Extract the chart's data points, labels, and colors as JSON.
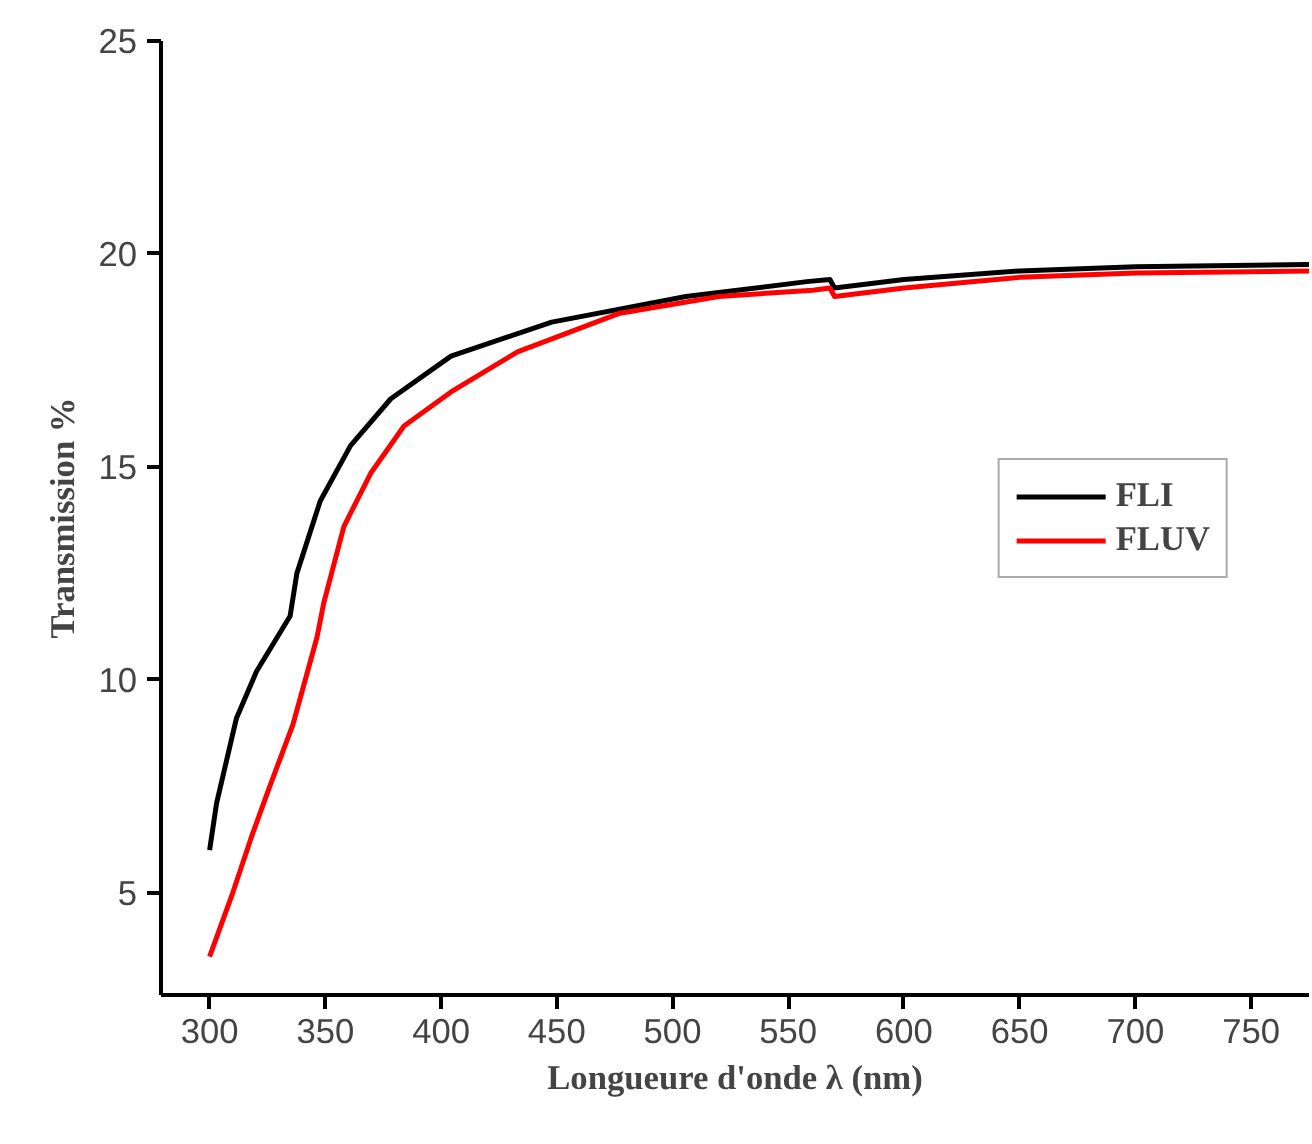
{
  "chart_data": {
    "type": "line",
    "xlabel": "Longueure d'onde λ (nm)",
    "ylabel": "Transmission %",
    "xlim": [
      279,
      775
    ],
    "ylim": [
      2.6,
      25
    ],
    "xticks": [
      300,
      350,
      400,
      450,
      500,
      550,
      600,
      650,
      700,
      750
    ],
    "yticks": [
      5,
      10,
      15,
      20,
      25
    ],
    "grid": false,
    "legend": "right",
    "line_style": "solid",
    "marker": "none",
    "series": [
      {
        "name": "FLI",
        "color": "#000000",
        "x": [
          300,
          303,
          311.6,
          320.3,
          334.8,
          337.7,
          347.8,
          360.9,
          378.3,
          404.3,
          447.8,
          505.8,
          558,
          568,
          570,
          600,
          650,
          700,
          775
        ],
        "values": [
          6.0,
          7.1,
          9.1,
          10.2,
          11.5,
          12.5,
          14.2,
          15.5,
          16.6,
          17.6,
          18.4,
          19.0,
          19.35,
          19.4,
          19.2,
          19.4,
          19.6,
          19.7,
          19.75
        ]
      },
      {
        "name": "FLUV",
        "color": "#ff0000",
        "x": [
          300,
          310,
          318,
          326,
          336,
          346.4,
          349.3,
          358,
          369.6,
          384,
          404.3,
          433,
          476.7,
          520,
          560.6,
          568,
          570,
          600,
          650,
          700,
          775
        ],
        "values": [
          3.5,
          5.0,
          6.3,
          7.5,
          8.95,
          11.0,
          11.8,
          13.6,
          14.85,
          15.96,
          16.76,
          17.7,
          18.6,
          19.0,
          19.15,
          19.2,
          19.0,
          19.2,
          19.45,
          19.55,
          19.6
        ]
      }
    ]
  }
}
